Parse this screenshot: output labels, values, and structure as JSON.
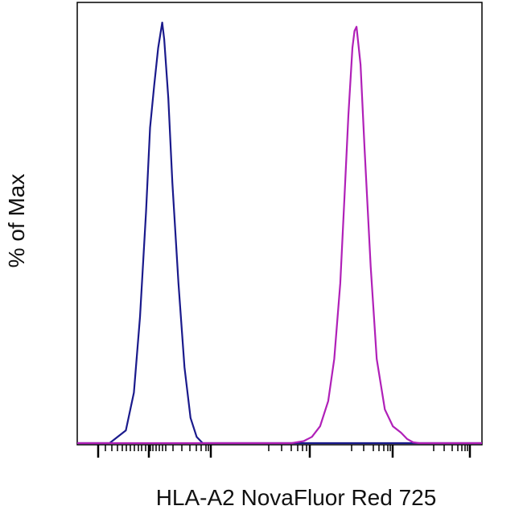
{
  "chart_data": {
    "type": "line",
    "title": "",
    "xlabel": "HLA-A2 NovaFluor Red 725",
    "ylabel": "% of Max",
    "ylim": [
      0,
      100
    ],
    "xlim": [
      0,
      100
    ],
    "grid": false,
    "legend": "none",
    "series": [
      {
        "color": "#1a1a8c",
        "x": [
          0,
          8,
          12,
          14,
          15.5,
          17,
          18,
          19,
          20,
          20.5,
          21,
          21.5,
          22.5,
          23.5,
          25,
          26.5,
          28,
          29.5,
          31,
          33,
          100
        ],
        "y": [
          0,
          0,
          3,
          12,
          30,
          55,
          75,
          85,
          94,
          97,
          100,
          96,
          82,
          62,
          38,
          18,
          6,
          1.5,
          0,
          0,
          0
        ]
      },
      {
        "color": "#b020b8",
        "x": [
          0,
          53,
          56,
          58,
          60,
          62,
          63.5,
          65,
          66,
          67,
          68,
          68.5,
          69,
          70,
          71,
          72.5,
          74,
          76,
          78,
          80,
          81.5,
          83,
          84.5,
          100
        ],
        "y": [
          0,
          0,
          0.5,
          1.5,
          4,
          10,
          20,
          38,
          58,
          78,
          94,
          98,
          99,
          90,
          70,
          42,
          20,
          8,
          4,
          2.5,
          1,
          0.2,
          0,
          0
        ]
      }
    ]
  }
}
